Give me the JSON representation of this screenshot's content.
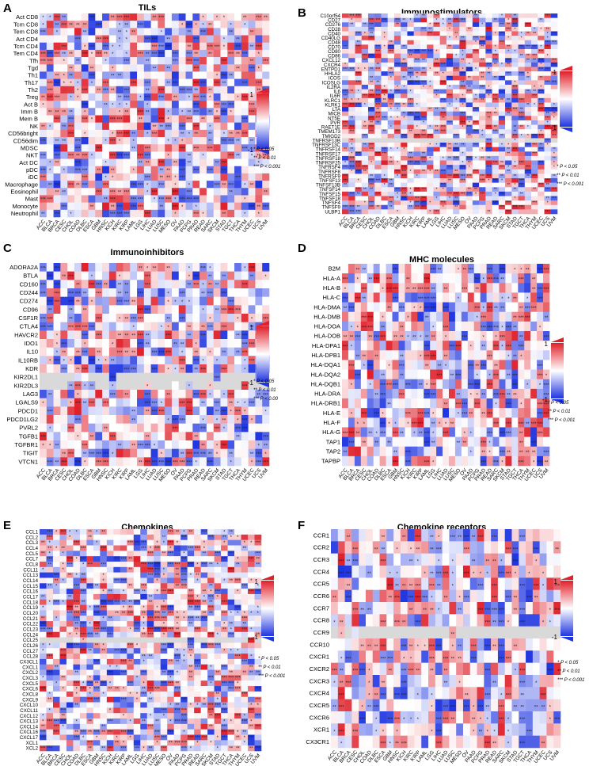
{
  "cancers": [
    "ACC",
    "BLCA",
    "BRCA",
    "CESC",
    "CHOL",
    "COAD",
    "DLBC",
    "ESCA",
    "GBM",
    "HNSC",
    "KICH",
    "KIRC",
    "KIRP",
    "LAML",
    "LGG",
    "LIHC",
    "LUAD",
    "LUSC",
    "MESO",
    "OV",
    "PAAD",
    "PCPG",
    "PRAD",
    "READ",
    "SARC",
    "SKCM",
    "STAD",
    "TGCT",
    "THCA",
    "THYM",
    "UCEC",
    "UCS",
    "UVM"
  ],
  "legend": {
    "max": "1",
    "min": "-1",
    "sig1": "* P < 0.05",
    "sig2": "** P < 0.01",
    "sig3": "*** P < 0.001",
    "sig3_truncated": "*** P < 0.00"
  },
  "colors": {
    "high": "#e0202a",
    "low": "#1f35e0",
    "mid": "#ffffff",
    "na": "#d9d9d9"
  },
  "chart_data": [
    {
      "type": "heatmap",
      "panel": "A",
      "title": "TILs",
      "rows": [
        "Act CD8",
        "Tcm CD8",
        "Tem CD8",
        "Act CD4",
        "Tcm CD4",
        "Tem CD4",
        "Tfh",
        "Tgd",
        "Th1",
        "Th17",
        "Th2",
        "Treg",
        "Act B",
        "Imm B",
        "Mem B",
        "NK",
        "CD56bright",
        "CD56dim",
        "MDSC",
        "NKT",
        "Act DC",
        "pDC",
        "iDC",
        "Macrophage",
        "Eosinophil",
        "Mast",
        "Monocyte",
        "Neutrophil"
      ],
      "value_range": [
        -1,
        1
      ]
    },
    {
      "type": "heatmap",
      "panel": "B",
      "title": "Immunostimulators",
      "rows": [
        "C10orf54",
        "CD27",
        "CD276",
        "CD28",
        "CD40",
        "CD40LG",
        "CD48",
        "CD70",
        "CD80",
        "CD86",
        "CXCL12",
        "CXCR4",
        "ENTPD1",
        "HHLA2",
        "ICOS",
        "ICOSLG",
        "IL2RA",
        "IL6",
        "IL6R",
        "KLRC1",
        "KLRK1",
        "LTA",
        "MICB",
        "NT5E",
        "PVR",
        "RAET1E",
        "TMEM173",
        "TMIGD2",
        "TNFRSF13B",
        "TNFRSF13C",
        "TNFRSF14",
        "TNFRSF17",
        "TNFRSF18",
        "TNFRSF25",
        "TNFRSF4",
        "TNFRSF8",
        "TNFRSF9",
        "TNFSF13",
        "TNFSF13B",
        "TNFSF14",
        "TNFSF15",
        "TNFSF18",
        "TNFSF4",
        "TNFSF9",
        "ULBP1"
      ],
      "value_range": [
        -1,
        1
      ]
    },
    {
      "type": "heatmap",
      "panel": "C",
      "title": "Immunoinhibitors",
      "rows": [
        "ADORA2A",
        "BTLA",
        "CD160",
        "CD244",
        "CD274",
        "CD96",
        "CSF1R",
        "CTLA4",
        "HAVCR2",
        "IDO1",
        "IL10",
        "IL10RB",
        "KDR",
        "KIR2DL1",
        "KIR2DL3",
        "LAG3",
        "LGALS9",
        "PDCD1",
        "PDCD1LG2",
        "PVRL2",
        "TGFB1",
        "TGFBR1",
        "TIGIT",
        "VTCN1"
      ],
      "value_range": [
        -1,
        1
      ]
    },
    {
      "type": "heatmap",
      "panel": "D",
      "title": "MHC molecules",
      "rows": [
        "B2M",
        "HLA-A",
        "HLA-B",
        "HLA-C",
        "HLA-DMA",
        "HLA-DMB",
        "HLA-DOA",
        "HLA-DOB",
        "HLA-DPA1",
        "HLA-DPB1",
        "HLA-DQA1",
        "HLA-DQA2",
        "HLA-DQB1",
        "HLA-DRA",
        "HLA-DRB1",
        "HLA-E",
        "HLA-F",
        "HLA-G",
        "TAP1",
        "TAP2",
        "TAPBP"
      ],
      "value_range": [
        -1,
        1
      ]
    },
    {
      "type": "heatmap",
      "panel": "E",
      "title": "Chemokines",
      "rows": [
        "CCL1",
        "CCL2",
        "CCL3",
        "CCL4",
        "CCL5",
        "CCL7",
        "CCL8",
        "CCL11",
        "CCL13",
        "CCL14",
        "CCL15",
        "CCL16",
        "CCL17",
        "CCL18",
        "CCL19",
        "CCL20",
        "CCL21",
        "CCL22",
        "CCL23",
        "CCL24",
        "CCL25",
        "CCL26",
        "CCL27",
        "CCL28",
        "CX3CL1",
        "CXCL1",
        "CXCL2",
        "CXCL3",
        "CXCL5",
        "CXCL6",
        "CXCL8",
        "CXCL9",
        "CXCL10",
        "CXCL11",
        "CXCL12",
        "CXCL13",
        "CXCL14",
        "CXCL16",
        "CXCL17",
        "XCL1",
        "XCL2"
      ],
      "value_range": [
        -1,
        1
      ]
    },
    {
      "type": "heatmap",
      "panel": "F",
      "title": "Chemokine receptors",
      "rows": [
        "CCR1",
        "CCR2",
        "CCR3",
        "CCR4",
        "CCR5",
        "CCR6",
        "CCR7",
        "CCR8",
        "CCR9",
        "CCR10",
        "CXCR1",
        "CXCR2",
        "CXCR3",
        "CXCR4",
        "CXCR5",
        "CXCR6",
        "XCR1",
        "CX3CR1"
      ],
      "value_range": [
        -1,
        1
      ]
    }
  ]
}
